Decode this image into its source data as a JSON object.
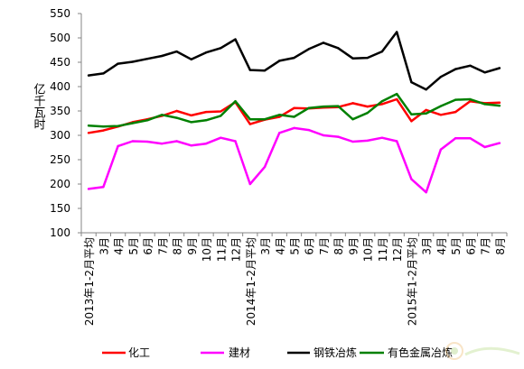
{
  "chart_data": {
    "type": "line",
    "title": "",
    "xlabel": "",
    "ylabel": "亿千瓦时",
    "ylim": [
      100,
      550
    ],
    "yticks": [
      100,
      150,
      200,
      250,
      300,
      350,
      400,
      450,
      500,
      550
    ],
    "grid": false,
    "legend": "bottom",
    "categories": [
      "2013年1-2月平均",
      "3月",
      "4月",
      "5月",
      "6月",
      "7月",
      "8月",
      "9月",
      "10月",
      "11月",
      "12月",
      "2014年1-2月平均",
      "3月",
      "4月",
      "5月",
      "6月",
      "7月",
      "8月",
      "9月",
      "10月",
      "11月",
      "12月",
      "2015年1-2月平均",
      "3月",
      "4月",
      "5月",
      "6月",
      "7月",
      "8月"
    ],
    "series": [
      {
        "name": "化工",
        "color": "#ff0000",
        "values": [
          305,
          310,
          318,
          327,
          333,
          340,
          350,
          341,
          348,
          349,
          368,
          323,
          332,
          338,
          356,
          355,
          357,
          358,
          366,
          359,
          364,
          374,
          329,
          352,
          342,
          348,
          370,
          366,
          367
        ]
      },
      {
        "name": "建材",
        "color": "#ff00ff",
        "values": [
          190,
          194,
          278,
          288,
          287,
          283,
          288,
          279,
          283,
          295,
          288,
          200,
          235,
          305,
          315,
          311,
          300,
          297,
          287,
          289,
          295,
          288,
          210,
          183,
          271,
          294,
          294,
          276,
          284
        ]
      },
      {
        "name": "钢铁冶炼",
        "color": "#000000",
        "values": [
          423,
          427,
          447,
          451,
          457,
          463,
          472,
          456,
          470,
          479,
          497,
          434,
          433,
          453,
          459,
          477,
          490,
          479,
          458,
          459,
          472,
          512,
          409,
          394,
          420,
          436,
          443,
          429,
          438
        ]
      },
      {
        "name": "有色金属冶炼",
        "color": "#008000",
        "values": [
          320,
          318,
          319,
          325,
          331,
          342,
          336,
          327,
          331,
          340,
          370,
          333,
          333,
          342,
          338,
          356,
          359,
          360,
          333,
          346,
          370,
          385,
          343,
          345,
          360,
          373,
          374,
          364,
          361
        ]
      }
    ]
  }
}
